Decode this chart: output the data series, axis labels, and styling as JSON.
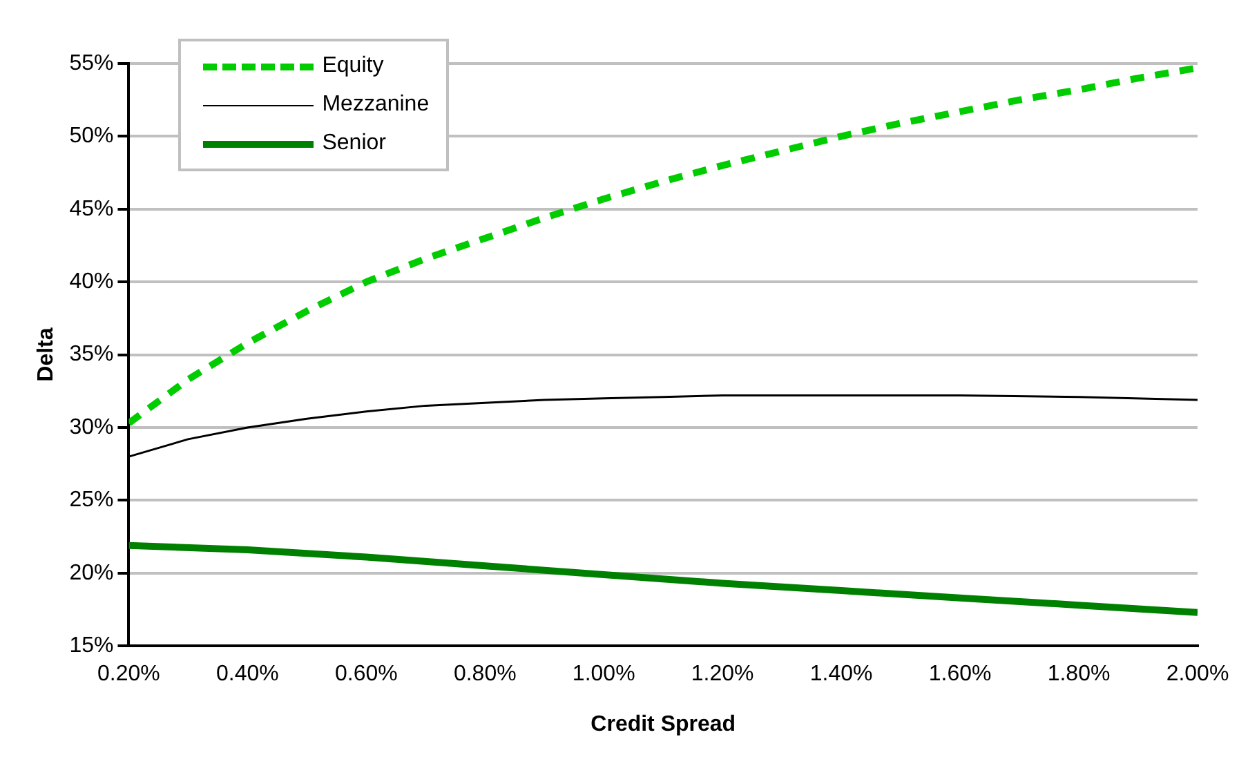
{
  "chart_data": {
    "type": "line",
    "xlabel": "Credit Spread",
    "ylabel": "Delta",
    "xlim": [
      0.2,
      2.0
    ],
    "xticks": [
      {
        "value": 0.2,
        "label": "0.20%"
      },
      {
        "value": 0.4,
        "label": "0.40%"
      },
      {
        "value": 0.6,
        "label": "0.60%"
      },
      {
        "value": 0.8,
        "label": "0.80%"
      },
      {
        "value": 1.0,
        "label": "1.00%"
      },
      {
        "value": 1.2,
        "label": "1.20%"
      },
      {
        "value": 1.4,
        "label": "1.40%"
      },
      {
        "value": 1.6,
        "label": "1.60%"
      },
      {
        "value": 1.8,
        "label": "1.80%"
      },
      {
        "value": 2.0,
        "label": "2.00%"
      }
    ],
    "ylim": [
      15,
      55
    ],
    "yticks": [
      {
        "value": 15,
        "label": "15%"
      },
      {
        "value": 20,
        "label": "20%"
      },
      {
        "value": 25,
        "label": "25%"
      },
      {
        "value": 30,
        "label": "30%"
      },
      {
        "value": 35,
        "label": "35%"
      },
      {
        "value": 40,
        "label": "40%"
      },
      {
        "value": 45,
        "label": "45%"
      },
      {
        "value": 50,
        "label": "50%"
      },
      {
        "value": 55,
        "label": "55%"
      }
    ],
    "grid": "y",
    "legend": "top left",
    "marker": "none",
    "series": [
      {
        "name": "Equity",
        "color": "#00cc00",
        "line_style": "dashed",
        "x": [
          0.2,
          0.3,
          0.4,
          0.5,
          0.6,
          0.7,
          0.8,
          0.9,
          1.0,
          1.1,
          1.2,
          1.3,
          1.4,
          1.5,
          1.6,
          1.7,
          1.8,
          1.9,
          2.0
        ],
        "values": [
          30.3,
          33.3,
          35.8,
          38,
          40,
          41.6,
          43,
          44.4,
          45.7,
          46.9,
          48,
          49,
          50,
          50.9,
          51.7,
          52.5,
          53.2,
          54,
          54.7
        ]
      },
      {
        "name": "Mezzanine",
        "color": "#000000",
        "line_style": "solid",
        "x": [
          0.2,
          0.3,
          0.4,
          0.5,
          0.6,
          0.7,
          0.8,
          0.9,
          1.0,
          1.1,
          1.2,
          1.4,
          1.6,
          1.8,
          2.0
        ],
        "values": [
          28,
          29.2,
          30,
          30.6,
          31.1,
          31.5,
          31.7,
          31.9,
          32,
          32.1,
          32.2,
          32.2,
          32.2,
          32.1,
          31.9
        ]
      },
      {
        "name": "Senior",
        "color": "#008000",
        "line_style": "solid",
        "x": [
          0.2,
          0.4,
          0.6,
          0.8,
          1.0,
          1.2,
          1.4,
          1.6,
          1.8,
          2.0
        ],
        "values": [
          21.9,
          21.6,
          21.1,
          20.5,
          19.9,
          19.3,
          18.8,
          18.3,
          17.8,
          17.3
        ]
      }
    ]
  }
}
